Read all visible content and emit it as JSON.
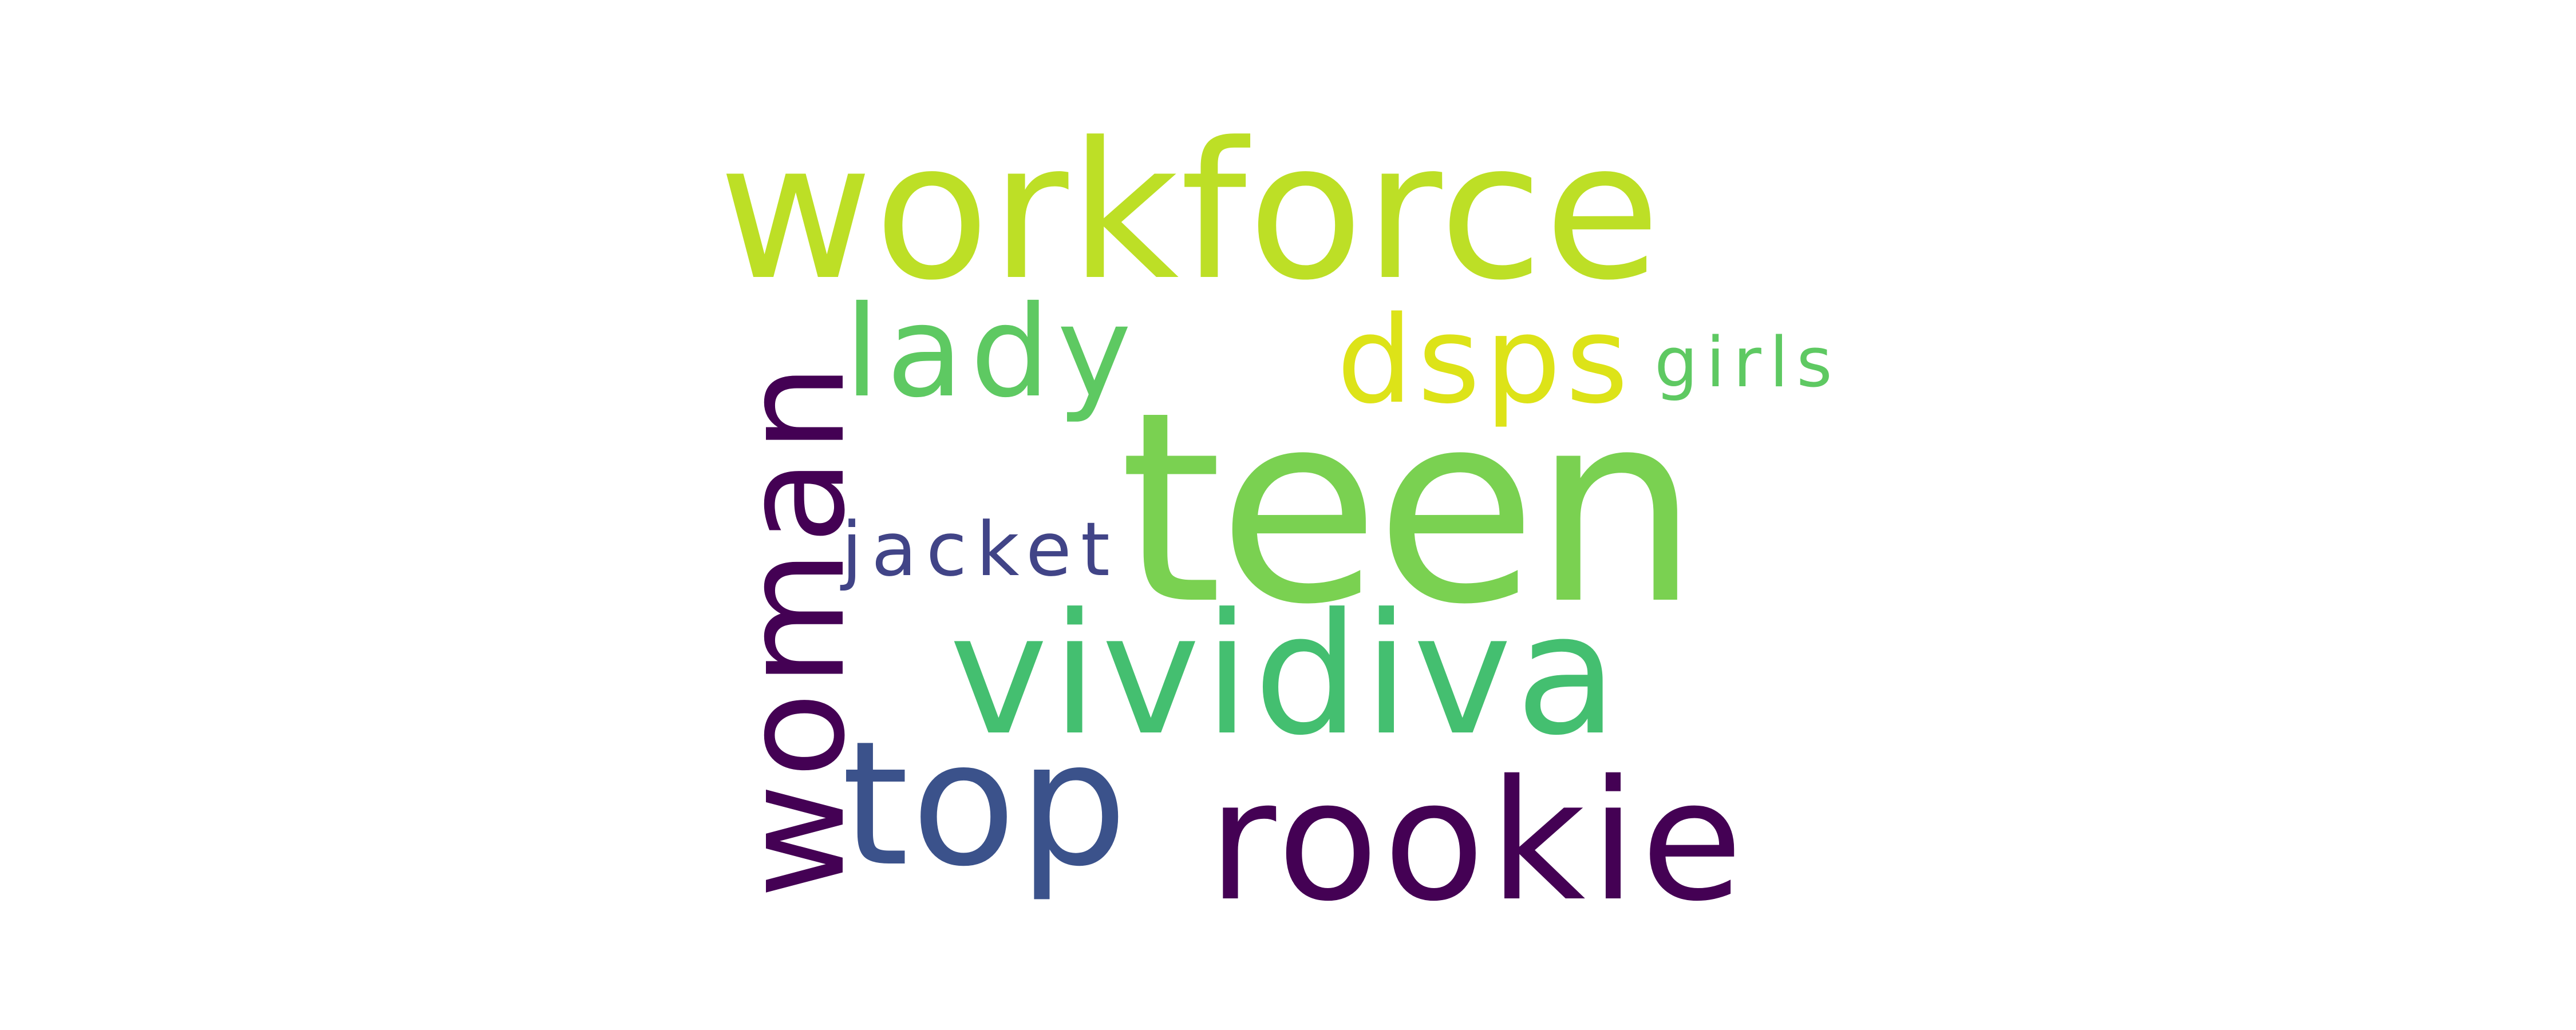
{
  "word_cloud": {
    "background": "#ffffff",
    "words": [
      {
        "text": "teen",
        "color": "#7ad151"
      },
      {
        "text": "workforce",
        "color": "#bddf26"
      },
      {
        "text": "vividiva",
        "color": "#44bf70"
      },
      {
        "text": "woman",
        "color": "#440154"
      },
      {
        "text": "rookie",
        "color": "#440154"
      },
      {
        "text": "top",
        "color": "#3b528b"
      },
      {
        "text": "lady",
        "color": "#5ec962"
      },
      {
        "text": "dsps",
        "color": "#dde318"
      },
      {
        "text": "girls",
        "color": "#5ec962"
      },
      {
        "text": "jacket",
        "color": "#414487"
      }
    ]
  }
}
